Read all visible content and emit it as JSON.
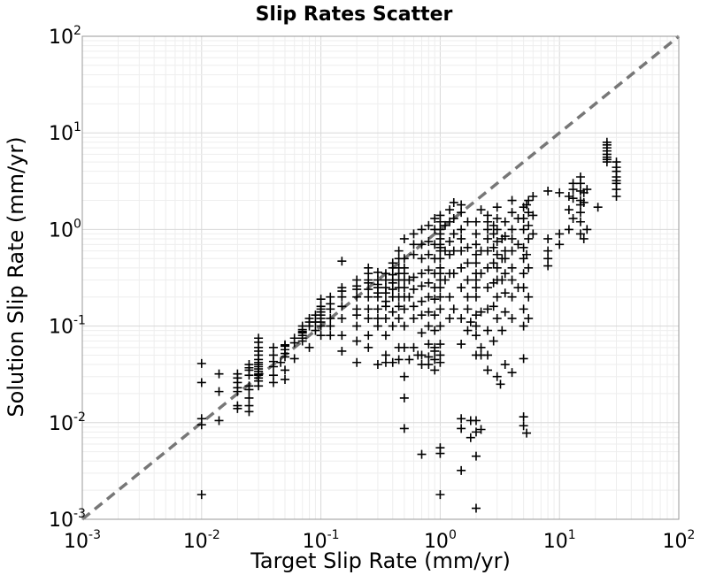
{
  "chart_data": {
    "type": "scatter",
    "title": "Slip Rates Scatter",
    "xlabel": "Target Slip Rate (mm/yr)",
    "ylabel": "Solution Slip Rate (mm/yr)",
    "xscale": "log",
    "yscale": "log",
    "xlim": [
      0.001,
      100
    ],
    "ylim": [
      0.001,
      100
    ],
    "grid": true,
    "marker": "plus",
    "marker_color": "#000000",
    "reference_line": {
      "style": "dashed",
      "color": "#777777",
      "from": [
        0.001,
        0.001
      ],
      "to": [
        100,
        100
      ]
    },
    "x_ticks": [
      {
        "base": "10",
        "exp": "-3"
      },
      {
        "base": "10",
        "exp": "-2"
      },
      {
        "base": "10",
        "exp": "-1"
      },
      {
        "base": "10",
        "exp": "0"
      },
      {
        "base": "10",
        "exp": "1"
      },
      {
        "base": "10",
        "exp": "2"
      }
    ],
    "y_ticks": [
      {
        "base": "10",
        "exp": "-3"
      },
      {
        "base": "10",
        "exp": "-2"
      },
      {
        "base": "10",
        "exp": "-1"
      },
      {
        "base": "10",
        "exp": "0"
      },
      {
        "base": "10",
        "exp": "1"
      },
      {
        "base": "10",
        "exp": "2"
      }
    ],
    "points": [
      [
        0.01,
        0.0018
      ],
      [
        0.01,
        0.0095
      ],
      [
        0.01,
        0.011
      ],
      [
        0.01,
        0.026
      ],
      [
        0.01,
        0.041
      ],
      [
        0.014,
        0.0105
      ],
      [
        0.014,
        0.021
      ],
      [
        0.014,
        0.032
      ],
      [
        0.02,
        0.014
      ],
      [
        0.02,
        0.015
      ],
      [
        0.02,
        0.021
      ],
      [
        0.02,
        0.023
      ],
      [
        0.02,
        0.026
      ],
      [
        0.02,
        0.029
      ],
      [
        0.02,
        0.032
      ],
      [
        0.025,
        0.013
      ],
      [
        0.025,
        0.015
      ],
      [
        0.025,
        0.018
      ],
      [
        0.025,
        0.022
      ],
      [
        0.025,
        0.024
      ],
      [
        0.025,
        0.031
      ],
      [
        0.025,
        0.035
      ],
      [
        0.025,
        0.04
      ],
      [
        0.025,
        0.037
      ],
      [
        0.03,
        0.027
      ],
      [
        0.03,
        0.029
      ],
      [
        0.03,
        0.032
      ],
      [
        0.03,
        0.034
      ],
      [
        0.03,
        0.036
      ],
      [
        0.03,
        0.038
      ],
      [
        0.03,
        0.04
      ],
      [
        0.03,
        0.042
      ],
      [
        0.03,
        0.045
      ],
      [
        0.03,
        0.05
      ],
      [
        0.03,
        0.055
      ],
      [
        0.03,
        0.06
      ],
      [
        0.03,
        0.068
      ],
      [
        0.03,
        0.075
      ],
      [
        0.03,
        0.024
      ],
      [
        0.03,
        0.031
      ],
      [
        0.04,
        0.026
      ],
      [
        0.04,
        0.031
      ],
      [
        0.04,
        0.038
      ],
      [
        0.04,
        0.043
      ],
      [
        0.04,
        0.05
      ],
      [
        0.04,
        0.06
      ],
      [
        0.05,
        0.028
      ],
      [
        0.05,
        0.035
      ],
      [
        0.05,
        0.048
      ],
      [
        0.05,
        0.052
      ],
      [
        0.05,
        0.057
      ],
      [
        0.05,
        0.062
      ],
      [
        0.05,
        0.064
      ],
      [
        0.046,
        0.042
      ],
      [
        0.06,
        0.046
      ],
      [
        0.06,
        0.067
      ],
      [
        0.06,
        0.075
      ],
      [
        0.07,
        0.07
      ],
      [
        0.07,
        0.075
      ],
      [
        0.07,
        0.08
      ],
      [
        0.07,
        0.085
      ],
      [
        0.07,
        0.088
      ],
      [
        0.07,
        0.092
      ],
      [
        0.07,
        0.1
      ],
      [
        0.08,
        0.06
      ],
      [
        0.08,
        0.1
      ],
      [
        0.08,
        0.11
      ],
      [
        0.08,
        0.12
      ],
      [
        0.09,
        0.09
      ],
      [
        0.09,
        0.13
      ],
      [
        0.09,
        0.11
      ],
      [
        0.1,
        0.08
      ],
      [
        0.1,
        0.1
      ],
      [
        0.1,
        0.11
      ],
      [
        0.1,
        0.12
      ],
      [
        0.1,
        0.13
      ],
      [
        0.1,
        0.14
      ],
      [
        0.1,
        0.15
      ],
      [
        0.1,
        0.16
      ],
      [
        0.1,
        0.19
      ],
      [
        0.12,
        0.08
      ],
      [
        0.12,
        0.1
      ],
      [
        0.12,
        0.12
      ],
      [
        0.12,
        0.15
      ],
      [
        0.12,
        0.17
      ],
      [
        0.12,
        0.2
      ],
      [
        0.15,
        0.08
      ],
      [
        0.15,
        0.12
      ],
      [
        0.15,
        0.16
      ],
      [
        0.15,
        0.2
      ],
      [
        0.15,
        0.23
      ],
      [
        0.15,
        0.25
      ],
      [
        0.15,
        0.47
      ],
      [
        0.15,
        0.055
      ],
      [
        0.2,
        0.042
      ],
      [
        0.2,
        0.07
      ],
      [
        0.2,
        0.1
      ],
      [
        0.2,
        0.13
      ],
      [
        0.2,
        0.15
      ],
      [
        0.2,
        0.2
      ],
      [
        0.2,
        0.24
      ],
      [
        0.2,
        0.26
      ],
      [
        0.2,
        0.3
      ],
      [
        0.25,
        0.12
      ],
      [
        0.25,
        0.15
      ],
      [
        0.25,
        0.2
      ],
      [
        0.25,
        0.24
      ],
      [
        0.25,
        0.28
      ],
      [
        0.25,
        0.3
      ],
      [
        0.25,
        0.35
      ],
      [
        0.25,
        0.4
      ],
      [
        0.25,
        0.06
      ],
      [
        0.25,
        0.08
      ],
      [
        0.3,
        0.1
      ],
      [
        0.3,
        0.12
      ],
      [
        0.3,
        0.15
      ],
      [
        0.3,
        0.2
      ],
      [
        0.3,
        0.22
      ],
      [
        0.3,
        0.25
      ],
      [
        0.3,
        0.27
      ],
      [
        0.3,
        0.3
      ],
      [
        0.3,
        0.36
      ],
      [
        0.3,
        0.04
      ],
      [
        0.35,
        0.08
      ],
      [
        0.35,
        0.12
      ],
      [
        0.35,
        0.16
      ],
      [
        0.35,
        0.18
      ],
      [
        0.35,
        0.22
      ],
      [
        0.35,
        0.25
      ],
      [
        0.35,
        0.3
      ],
      [
        0.35,
        0.35
      ],
      [
        0.35,
        0.042
      ],
      [
        0.35,
        0.05
      ],
      [
        0.4,
        0.1
      ],
      [
        0.4,
        0.14
      ],
      [
        0.4,
        0.2
      ],
      [
        0.4,
        0.24
      ],
      [
        0.4,
        0.28
      ],
      [
        0.4,
        0.3
      ],
      [
        0.4,
        0.34
      ],
      [
        0.4,
        0.4
      ],
      [
        0.4,
        0.45
      ],
      [
        0.4,
        0.042
      ],
      [
        0.45,
        0.12
      ],
      [
        0.45,
        0.16
      ],
      [
        0.45,
        0.2
      ],
      [
        0.45,
        0.25
      ],
      [
        0.45,
        0.3
      ],
      [
        0.45,
        0.35
      ],
      [
        0.45,
        0.4
      ],
      [
        0.45,
        0.5
      ],
      [
        0.45,
        0.6
      ],
      [
        0.45,
        0.045
      ],
      [
        0.45,
        0.06
      ],
      [
        0.5,
        0.0087
      ],
      [
        0.5,
        0.018
      ],
      [
        0.5,
        0.03
      ],
      [
        0.5,
        0.06
      ],
      [
        0.5,
        0.1
      ],
      [
        0.5,
        0.15
      ],
      [
        0.5,
        0.2
      ],
      [
        0.5,
        0.25
      ],
      [
        0.5,
        0.3
      ],
      [
        0.5,
        0.35
      ],
      [
        0.5,
        0.4
      ],
      [
        0.5,
        0.5
      ],
      [
        0.5,
        0.8
      ],
      [
        0.55,
        0.045
      ],
      [
        0.55,
        0.2
      ],
      [
        0.55,
        0.3
      ],
      [
        0.6,
        0.12
      ],
      [
        0.6,
        0.16
      ],
      [
        0.6,
        0.24
      ],
      [
        0.6,
        0.32
      ],
      [
        0.6,
        0.55
      ],
      [
        0.6,
        0.7
      ],
      [
        0.6,
        0.9
      ],
      [
        0.6,
        0.06
      ],
      [
        0.65,
        0.05
      ],
      [
        0.7,
        0.085
      ],
      [
        0.7,
        0.13
      ],
      [
        0.7,
        0.18
      ],
      [
        0.7,
        0.26
      ],
      [
        0.7,
        0.35
      ],
      [
        0.7,
        0.5
      ],
      [
        0.7,
        0.7
      ],
      [
        0.7,
        1.0
      ],
      [
        0.7,
        0.0047
      ],
      [
        0.7,
        0.04
      ],
      [
        0.7,
        0.05
      ],
      [
        0.8,
        0.04
      ],
      [
        0.8,
        0.065
      ],
      [
        0.8,
        0.1
      ],
      [
        0.8,
        0.14
      ],
      [
        0.8,
        0.2
      ],
      [
        0.8,
        0.28
      ],
      [
        0.8,
        0.38
      ],
      [
        0.8,
        0.55
      ],
      [
        0.8,
        0.75
      ],
      [
        0.8,
        1.1
      ],
      [
        0.8,
        0.048
      ],
      [
        0.9,
        0.035
      ],
      [
        0.9,
        0.06
      ],
      [
        0.9,
        0.09
      ],
      [
        0.9,
        0.13
      ],
      [
        0.9,
        0.19
      ],
      [
        0.9,
        0.25
      ],
      [
        0.9,
        0.35
      ],
      [
        0.9,
        0.5
      ],
      [
        0.9,
        0.7
      ],
      [
        0.9,
        1.0
      ],
      [
        0.9,
        1.3
      ],
      [
        0.9,
        0.045
      ],
      [
        0.9,
        0.055
      ],
      [
        1.0,
        0.0018
      ],
      [
        1.0,
        0.0048
      ],
      [
        1.0,
        0.0055
      ],
      [
        1.0,
        0.042
      ],
      [
        1.0,
        0.05
      ],
      [
        1.0,
        0.065
      ],
      [
        1.0,
        0.1
      ],
      [
        1.0,
        0.15
      ],
      [
        1.0,
        0.2
      ],
      [
        1.0,
        0.25
      ],
      [
        1.0,
        0.3
      ],
      [
        1.0,
        0.35
      ],
      [
        1.0,
        0.4
      ],
      [
        1.0,
        0.5
      ],
      [
        1.0,
        0.6
      ],
      [
        1.0,
        0.65
      ],
      [
        1.0,
        0.7
      ],
      [
        1.0,
        0.8
      ],
      [
        1.0,
        0.9
      ],
      [
        1.0,
        1.0
      ],
      [
        1.0,
        1.2
      ],
      [
        1.0,
        1.4
      ],
      [
        1.1,
        0.3
      ],
      [
        1.1,
        0.6
      ],
      [
        1.1,
        1.1
      ],
      [
        1.2,
        0.12
      ],
      [
        1.2,
        0.2
      ],
      [
        1.2,
        0.35
      ],
      [
        1.2,
        0.55
      ],
      [
        1.2,
        0.75
      ],
      [
        1.2,
        1.2
      ],
      [
        1.2,
        1.6
      ],
      [
        1.3,
        0.15
      ],
      [
        1.3,
        0.35
      ],
      [
        1.3,
        0.6
      ],
      [
        1.3,
        0.9
      ],
      [
        1.3,
        1.3
      ],
      [
        1.3,
        1.9
      ],
      [
        1.5,
        0.065
      ],
      [
        1.5,
        0.12
      ],
      [
        1.5,
        0.25
      ],
      [
        1.5,
        0.4
      ],
      [
        1.5,
        0.6
      ],
      [
        1.5,
        0.8
      ],
      [
        1.5,
        1.0
      ],
      [
        1.5,
        1.5
      ],
      [
        1.5,
        1.8
      ],
      [
        1.5,
        0.011
      ],
      [
        1.5,
        0.0032
      ],
      [
        1.5,
        0.0087
      ],
      [
        1.7,
        0.09
      ],
      [
        1.7,
        0.15
      ],
      [
        1.7,
        0.2
      ],
      [
        1.7,
        0.3
      ],
      [
        1.7,
        0.45
      ],
      [
        1.7,
        0.65
      ],
      [
        1.7,
        1.2
      ],
      [
        1.8,
        0.007
      ],
      [
        1.8,
        0.0105
      ],
      [
        1.8,
        0.11
      ],
      [
        2.0,
        0.0013
      ],
      [
        2.0,
        0.0045
      ],
      [
        2.0,
        0.008
      ],
      [
        2.0,
        0.0105
      ],
      [
        2.0,
        0.05
      ],
      [
        2.0,
        0.08
      ],
      [
        2.0,
        0.1
      ],
      [
        2.0,
        0.13
      ],
      [
        2.0,
        0.2
      ],
      [
        2.0,
        0.25
      ],
      [
        2.0,
        0.3
      ],
      [
        2.0,
        0.35
      ],
      [
        2.0,
        0.45
      ],
      [
        2.0,
        0.55
      ],
      [
        2.0,
        0.7
      ],
      [
        2.0,
        0.9
      ],
      [
        2.0,
        1.2
      ],
      [
        2.2,
        0.0085
      ],
      [
        2.2,
        0.05
      ],
      [
        2.2,
        0.06
      ],
      [
        2.2,
        0.14
      ],
      [
        2.2,
        0.35
      ],
      [
        2.2,
        0.6
      ],
      [
        2.2,
        1.6
      ],
      [
        2.5,
        0.035
      ],
      [
        2.5,
        0.05
      ],
      [
        2.5,
        0.09
      ],
      [
        2.5,
        0.15
      ],
      [
        2.5,
        0.25
      ],
      [
        2.5,
        0.4
      ],
      [
        2.5,
        0.6
      ],
      [
        2.5,
        0.8
      ],
      [
        2.5,
        1.0
      ],
      [
        2.5,
        1.2
      ],
      [
        2.5,
        1.4
      ],
      [
        2.8,
        0.07
      ],
      [
        2.8,
        0.16
      ],
      [
        2.8,
        0.28
      ],
      [
        2.8,
        0.45
      ],
      [
        2.8,
        0.65
      ],
      [
        2.8,
        0.9
      ],
      [
        2.8,
        1.1
      ],
      [
        3.0,
        0.03
      ],
      [
        3.0,
        0.12
      ],
      [
        3.0,
        0.2
      ],
      [
        3.0,
        0.3
      ],
      [
        3.0,
        0.4
      ],
      [
        3.0,
        0.55
      ],
      [
        3.0,
        0.75
      ],
      [
        3.0,
        1.0
      ],
      [
        3.0,
        1.3
      ],
      [
        3.0,
        1.7
      ],
      [
        3.2,
        0.025
      ],
      [
        3.3,
        0.09
      ],
      [
        3.3,
        0.3
      ],
      [
        3.3,
        0.5
      ],
      [
        3.3,
        0.8
      ],
      [
        3.5,
        0.04
      ],
      [
        3.5,
        0.14
      ],
      [
        3.5,
        0.22
      ],
      [
        3.5,
        0.35
      ],
      [
        3.5,
        0.5
      ],
      [
        3.5,
        0.6
      ],
      [
        3.5,
        0.85
      ],
      [
        3.5,
        1.2
      ],
      [
        4.0,
        0.033
      ],
      [
        4.0,
        0.12
      ],
      [
        4.0,
        0.2
      ],
      [
        4.0,
        0.3
      ],
      [
        4.0,
        0.4
      ],
      [
        4.0,
        0.6
      ],
      [
        4.0,
        0.8
      ],
      [
        4.0,
        1.0
      ],
      [
        4.0,
        1.5
      ],
      [
        4.0,
        2.0
      ],
      [
        4.5,
        0.25
      ],
      [
        4.5,
        0.7
      ],
      [
        4.5,
        1.3
      ],
      [
        5.0,
        0.0093
      ],
      [
        5.0,
        0.0115
      ],
      [
        5.0,
        0.046
      ],
      [
        5.0,
        0.1
      ],
      [
        5.0,
        0.15
      ],
      [
        5.0,
        0.25
      ],
      [
        5.0,
        0.35
      ],
      [
        5.0,
        0.5
      ],
      [
        5.0,
        0.65
      ],
      [
        5.0,
        1.0
      ],
      [
        5.0,
        1.3
      ],
      [
        5.0,
        1.7
      ],
      [
        5.3,
        0.0078
      ],
      [
        5.3,
        0.55
      ],
      [
        5.3,
        1.8
      ],
      [
        5.5,
        0.12
      ],
      [
        5.5,
        0.2
      ],
      [
        5.5,
        0.4
      ],
      [
        5.5,
        0.8
      ],
      [
        5.5,
        1.1
      ],
      [
        5.5,
        1.5
      ],
      [
        5.5,
        2.0
      ],
      [
        6.0,
        0.9
      ],
      [
        6.0,
        1.4
      ],
      [
        6.0,
        2.2
      ],
      [
        8.0,
        0.42
      ],
      [
        8.0,
        0.5
      ],
      [
        8.0,
        0.6
      ],
      [
        8.0,
        0.8
      ],
      [
        8.0,
        2.5
      ],
      [
        10.0,
        0.7
      ],
      [
        10.0,
        0.9
      ],
      [
        10.0,
        2.4
      ],
      [
        12.0,
        1.0
      ],
      [
        12.0,
        1.6
      ],
      [
        12.0,
        2.2
      ],
      [
        13.0,
        1.3
      ],
      [
        13.0,
        2.1
      ],
      [
        13.0,
        2.6
      ],
      [
        13.0,
        3.0
      ],
      [
        15.0,
        1.2
      ],
      [
        15.0,
        1.5
      ],
      [
        15.0,
        1.8
      ],
      [
        15.0,
        2.0
      ],
      [
        15.0,
        2.5
      ],
      [
        15.0,
        3.0
      ],
      [
        15.0,
        3.5
      ],
      [
        15.0,
        0.9
      ],
      [
        16.0,
        1.9
      ],
      [
        16.0,
        2.4
      ],
      [
        16.0,
        0.8
      ],
      [
        17.0,
        1.0
      ],
      [
        17.0,
        2.6
      ],
      [
        21.0,
        1.7
      ],
      [
        25.0,
        5.0
      ],
      [
        25.0,
        5.3
      ],
      [
        25.0,
        5.6
      ],
      [
        25.0,
        6.0
      ],
      [
        25.0,
        6.5
      ],
      [
        25.0,
        7.0
      ],
      [
        25.0,
        7.5
      ],
      [
        25.0,
        8.0
      ],
      [
        30.0,
        2.2
      ],
      [
        30.0,
        2.6
      ],
      [
        30.0,
        3.0
      ],
      [
        30.0,
        3.2
      ],
      [
        30.0,
        3.5
      ],
      [
        30.0,
        4.0
      ],
      [
        30.0,
        4.4
      ],
      [
        30.0,
        5.0
      ]
    ]
  }
}
